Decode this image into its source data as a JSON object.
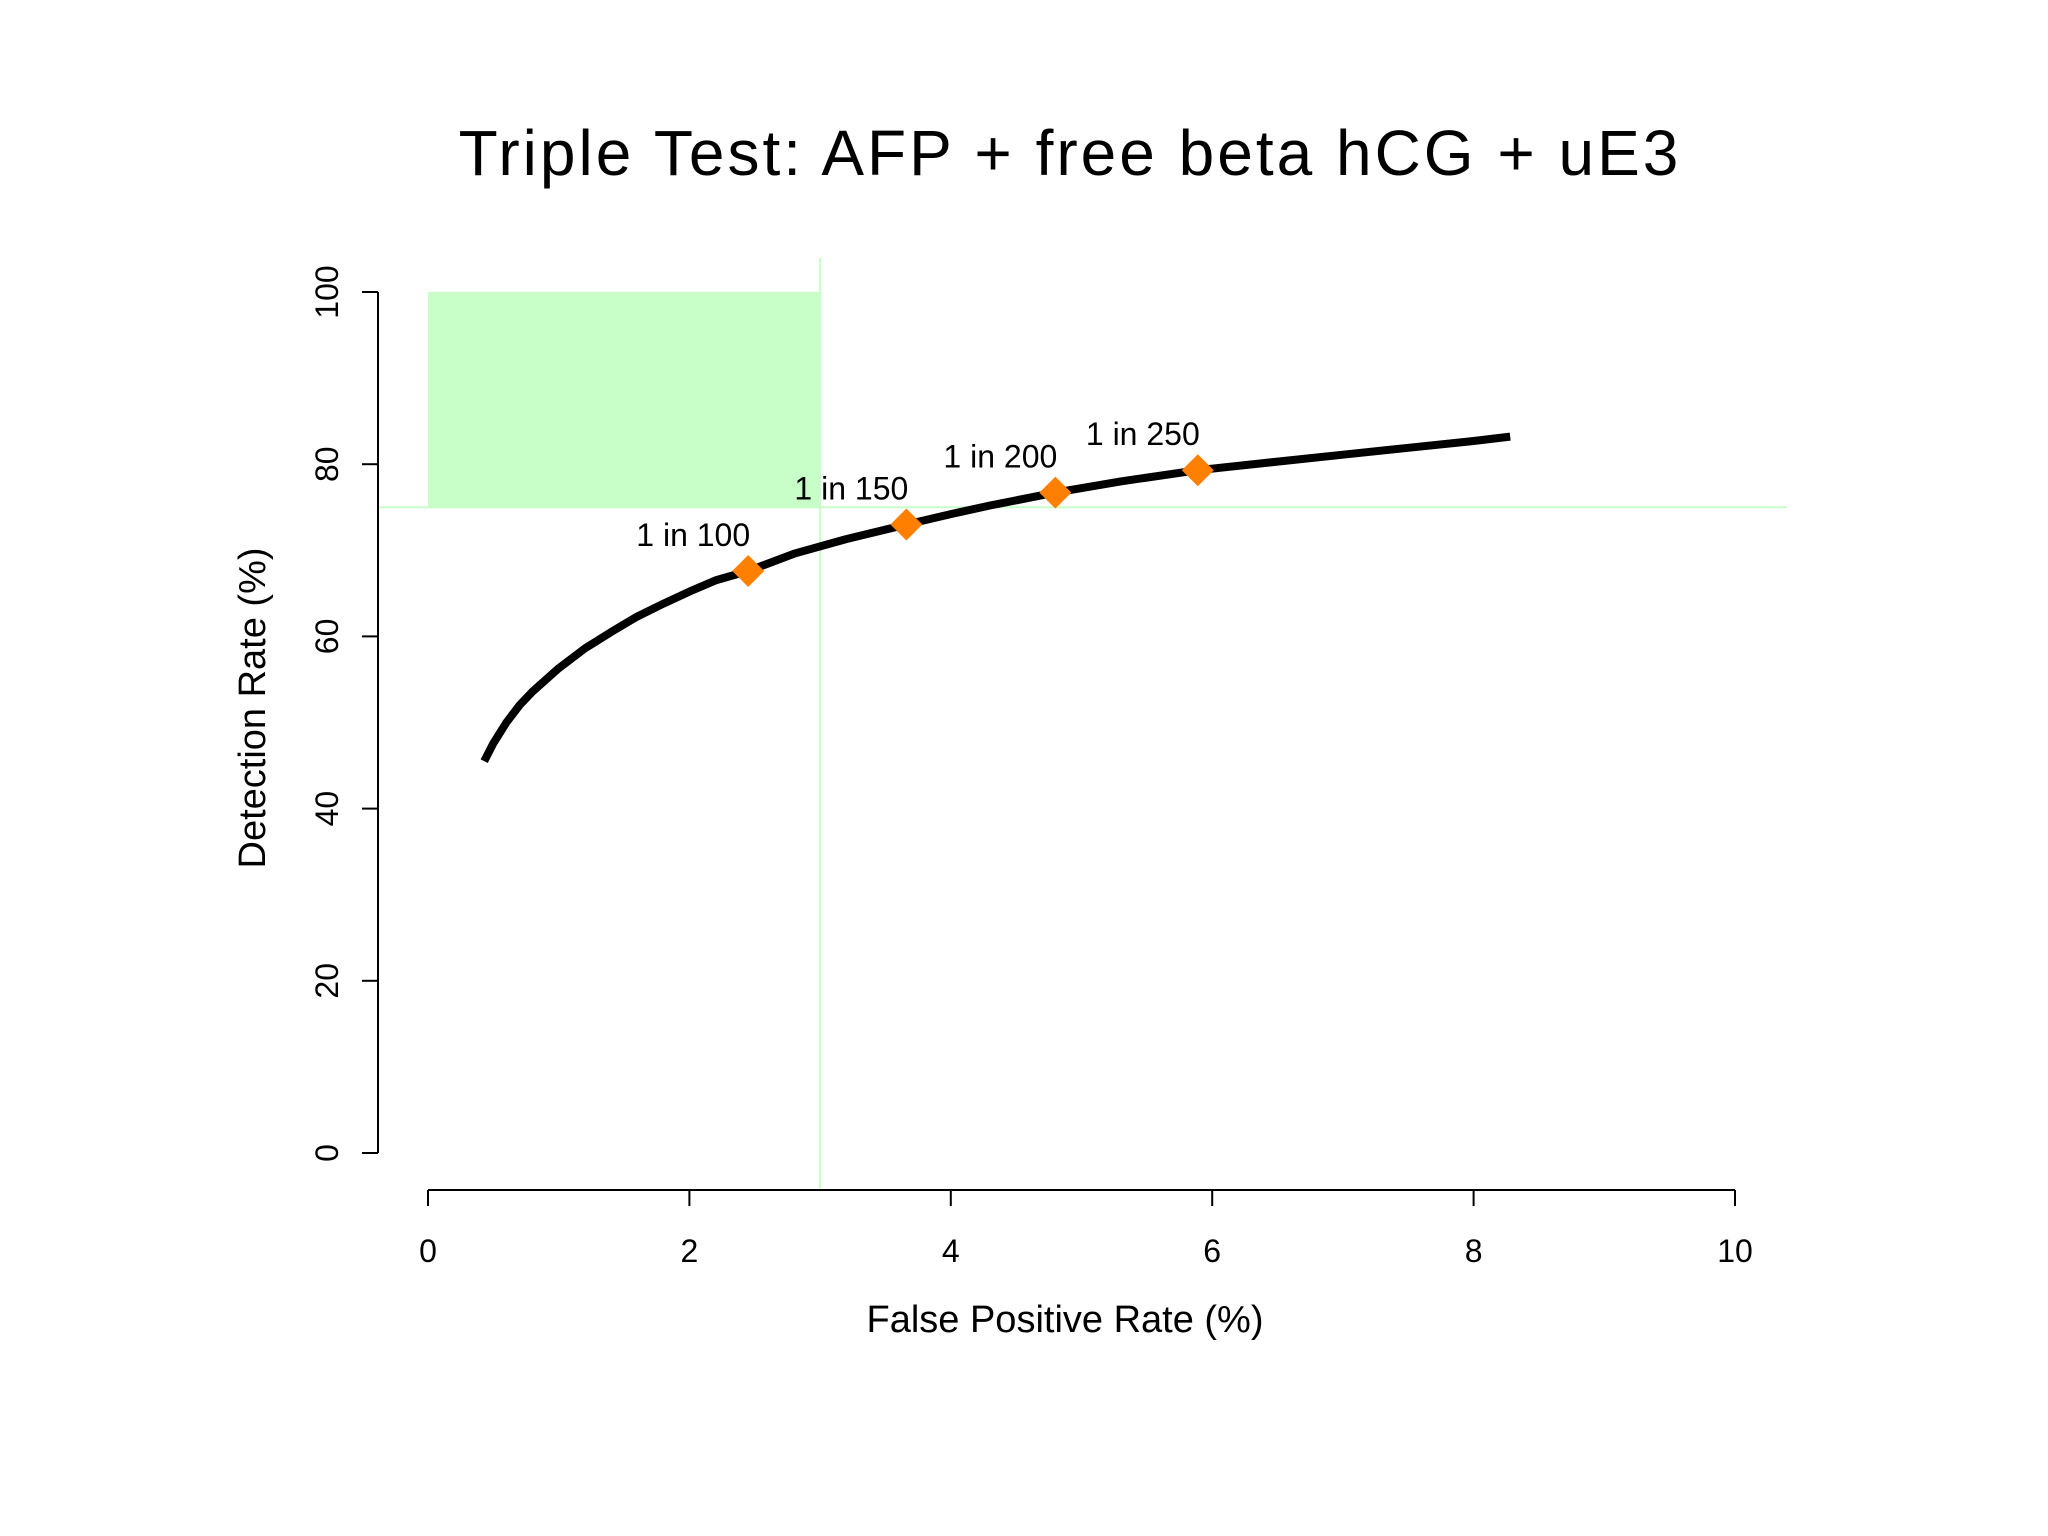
{
  "chart_data": {
    "type": "line",
    "title": "Triple Test: AFP + free beta hCG + uE3",
    "xlabel": "False Positive Rate (%)",
    "ylabel": "Detection Rate (%)",
    "xlim": [
      0,
      10
    ],
    "ylim": [
      0,
      100
    ],
    "xticks": [
      "0",
      "2",
      "4",
      "6",
      "8",
      "10"
    ],
    "yticks": [
      "0",
      "20",
      "40",
      "60",
      "80",
      "100"
    ],
    "grid": false,
    "curve": {
      "x": [
        0.43,
        0.5,
        0.6,
        0.7,
        0.8,
        1.0,
        1.2,
        1.4,
        1.6,
        1.8,
        2.0,
        2.2,
        2.45,
        2.8,
        3.2,
        3.66,
        4.0,
        4.3,
        4.8,
        5.3,
        5.89,
        6.5,
        7.0,
        7.5,
        8.0,
        8.28
      ],
      "y": [
        45.5,
        47.6,
        50.0,
        52.0,
        53.6,
        56.3,
        58.6,
        60.5,
        62.3,
        63.8,
        65.2,
        66.5,
        67.6,
        69.6,
        71.3,
        73.0,
        74.2,
        75.2,
        76.7,
        78.0,
        79.3,
        80.3,
        81.1,
        81.9,
        82.7,
        83.2
      ],
      "color": "#000000"
    },
    "points": [
      {
        "x": 2.45,
        "y": 67.6,
        "label": "1 in 100"
      },
      {
        "x": 3.66,
        "y": 73.0,
        "label": "1 in 150"
      },
      {
        "x": 4.8,
        "y": 76.7,
        "label": "1 in 200"
      },
      {
        "x": 5.89,
        "y": 79.3,
        "label": "1 in 250"
      }
    ],
    "point_color": "#ff8000",
    "target_region": {
      "x": [
        0,
        3
      ],
      "y": [
        75,
        100
      ],
      "color": "#c8ffc8"
    },
    "reference_lines": {
      "x": 3,
      "y": 75,
      "color": "#c8ffc8"
    }
  }
}
